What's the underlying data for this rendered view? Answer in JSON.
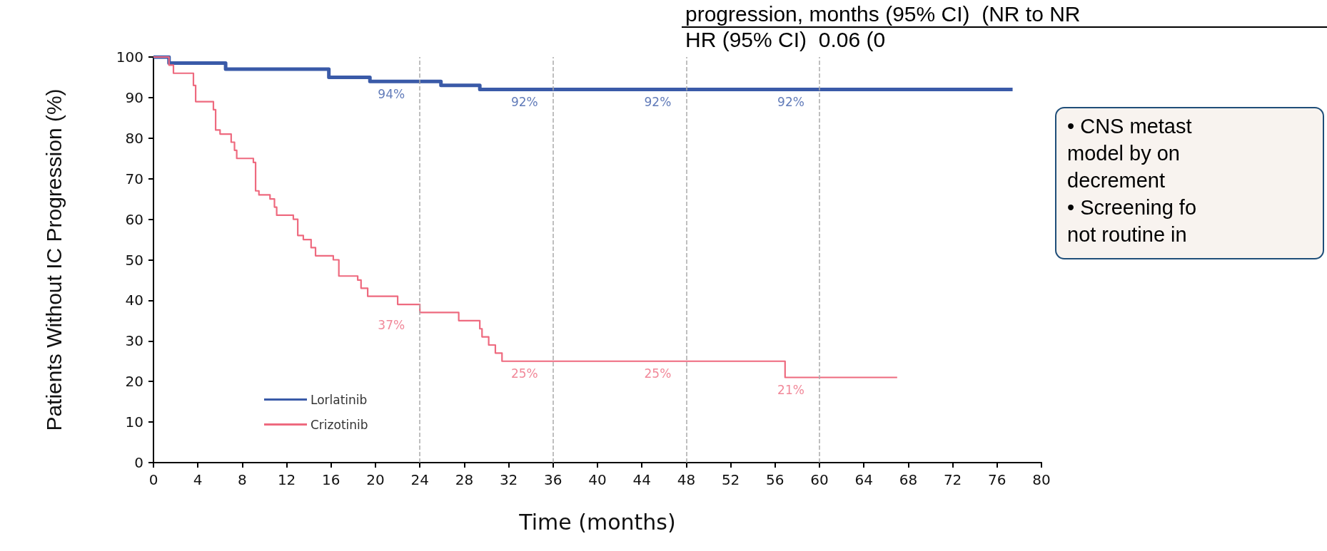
{
  "chart_data": {
    "type": "step",
    "xlabel": "Time (months)",
    "ylabel": "Patients Without IC Progression (%)",
    "xlim": [
      0,
      80
    ],
    "xticks": [
      0,
      4,
      8,
      12,
      16,
      20,
      24,
      28,
      32,
      36,
      40,
      44,
      48,
      52,
      56,
      60,
      64,
      68,
      72,
      76,
      80
    ],
    "ylim": [
      0,
      100
    ],
    "yticks": [
      0,
      10,
      20,
      30,
      40,
      50,
      60,
      70,
      80,
      90,
      100
    ],
    "grid": false,
    "legend": "bottom left",
    "marker": "none",
    "line_style": "solid",
    "series": [
      {
        "name": "Lorlatinib",
        "color": "#3a5aa8",
        "x": [
          0,
          1.4,
          6.5,
          15.8,
          19.5,
          25.9,
          29.4,
          77.4
        ],
        "values": [
          100,
          98.5,
          97,
          95,
          94,
          93,
          92,
          92
        ]
      },
      {
        "name": "Crizotinib",
        "color": "#ee6a7f",
        "x": [
          0,
          1.4,
          1.8,
          3.6,
          3.8,
          5.4,
          5.6,
          6,
          7,
          7.3,
          7.5,
          9,
          9.2,
          9.5,
          10.5,
          10.9,
          11.1,
          12.6,
          13,
          13.5,
          14.2,
          14.6,
          16.2,
          16.7,
          18.4,
          18.7,
          19.3,
          22,
          24,
          27.5,
          29.4,
          29.6,
          30.2,
          30.8,
          31.4,
          56.9,
          67
        ],
        "values": [
          100,
          98,
          96,
          93,
          89,
          87,
          82,
          81,
          79,
          77,
          75,
          74,
          67,
          66,
          65,
          63,
          61,
          60,
          56,
          55,
          53,
          51,
          50,
          46,
          45,
          43,
          41,
          39,
          37,
          35,
          33,
          31,
          29,
          27,
          25,
          21,
          21
        ]
      }
    ],
    "ref_lines": [
      {
        "axis": "x",
        "value": 24,
        "color": "#aaaaaa",
        "line_style": "dashed"
      },
      {
        "axis": "x",
        "value": 36,
        "color": "#aaaaaa",
        "line_style": "dashed"
      },
      {
        "axis": "x",
        "value": 48,
        "color": "#aaaaaa",
        "line_style": "dashed"
      },
      {
        "axis": "x",
        "value": 60,
        "color": "#aaaaaa",
        "line_style": "dashed"
      }
    ],
    "annotations": [
      "progression, months (95% CI)  (NR to NR",
      "HR (95% CI)  0.06 (0",
      "• CNS metast",
      "model by on",
      "decrement",
      "• Screening fo",
      "not routine in",
      {
        "text": "94%",
        "x": 24,
        "y": 94
      },
      {
        "text": "92%",
        "x": 36,
        "y": 92
      },
      {
        "text": "92%",
        "x": 48,
        "y": 92
      },
      {
        "text": "92%",
        "x": 60,
        "y": 92
      },
      {
        "text": "37%",
        "x": 24,
        "y": 37
      },
      {
        "text": "25%",
        "x": 36,
        "y": 25
      },
      {
        "text": "25%",
        "x": 48,
        "y": 25
      },
      {
        "text": "21%",
        "x": 60,
        "y": 21
      }
    ]
  }
}
